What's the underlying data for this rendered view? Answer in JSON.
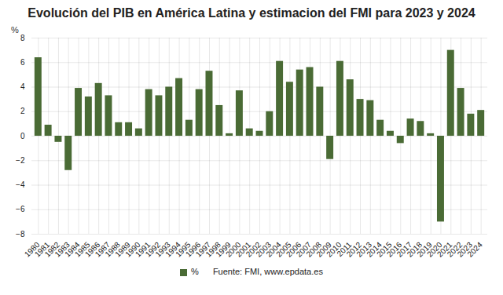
{
  "chart_data": {
    "type": "bar",
    "title": "Evolución del PIB en América Latina y estimacion del FMI para 2023 y 2024",
    "ylabel": "%",
    "source": "Fuente: FMI, www.epdata.es",
    "categories": [
      "1980",
      "1981",
      "1982",
      "1983",
      "1984",
      "1985",
      "1986",
      "1987",
      "1988",
      "1989",
      "1990",
      "1991",
      "1992",
      "1993",
      "1994",
      "1995",
      "1996",
      "1997",
      "1998",
      "1999",
      "2000",
      "2001",
      "2002",
      "2003",
      "2004",
      "2005",
      "2006",
      "2007",
      "2008",
      "2009",
      "2010",
      "2011",
      "2012",
      "2013",
      "2014",
      "2015",
      "2016",
      "2017",
      "2018",
      "2019",
      "2020",
      "2021",
      "2022",
      "2023",
      "2024"
    ],
    "series": [
      {
        "name": "%",
        "color": "#4a6b35",
        "values": [
          6.4,
          0.9,
          -0.5,
          -2.8,
          3.9,
          3.2,
          4.3,
          3.3,
          1.1,
          1.1,
          0.6,
          3.8,
          3.3,
          4.0,
          4.7,
          1.3,
          3.8,
          5.3,
          2.5,
          0.2,
          3.7,
          0.6,
          0.4,
          2.0,
          6.1,
          4.4,
          5.4,
          5.6,
          4.0,
          -1.9,
          6.1,
          4.6,
          3.0,
          2.9,
          1.3,
          0.4,
          -0.6,
          1.4,
          1.2,
          0.2,
          -7.0,
          7.0,
          3.9,
          1.8,
          2.1
        ]
      }
    ],
    "ylim": [
      -8,
      8
    ],
    "yticks": [
      -8,
      -6,
      -4,
      -2,
      0,
      2,
      4,
      6,
      8
    ],
    "grid": true,
    "legend": "bottom"
  }
}
